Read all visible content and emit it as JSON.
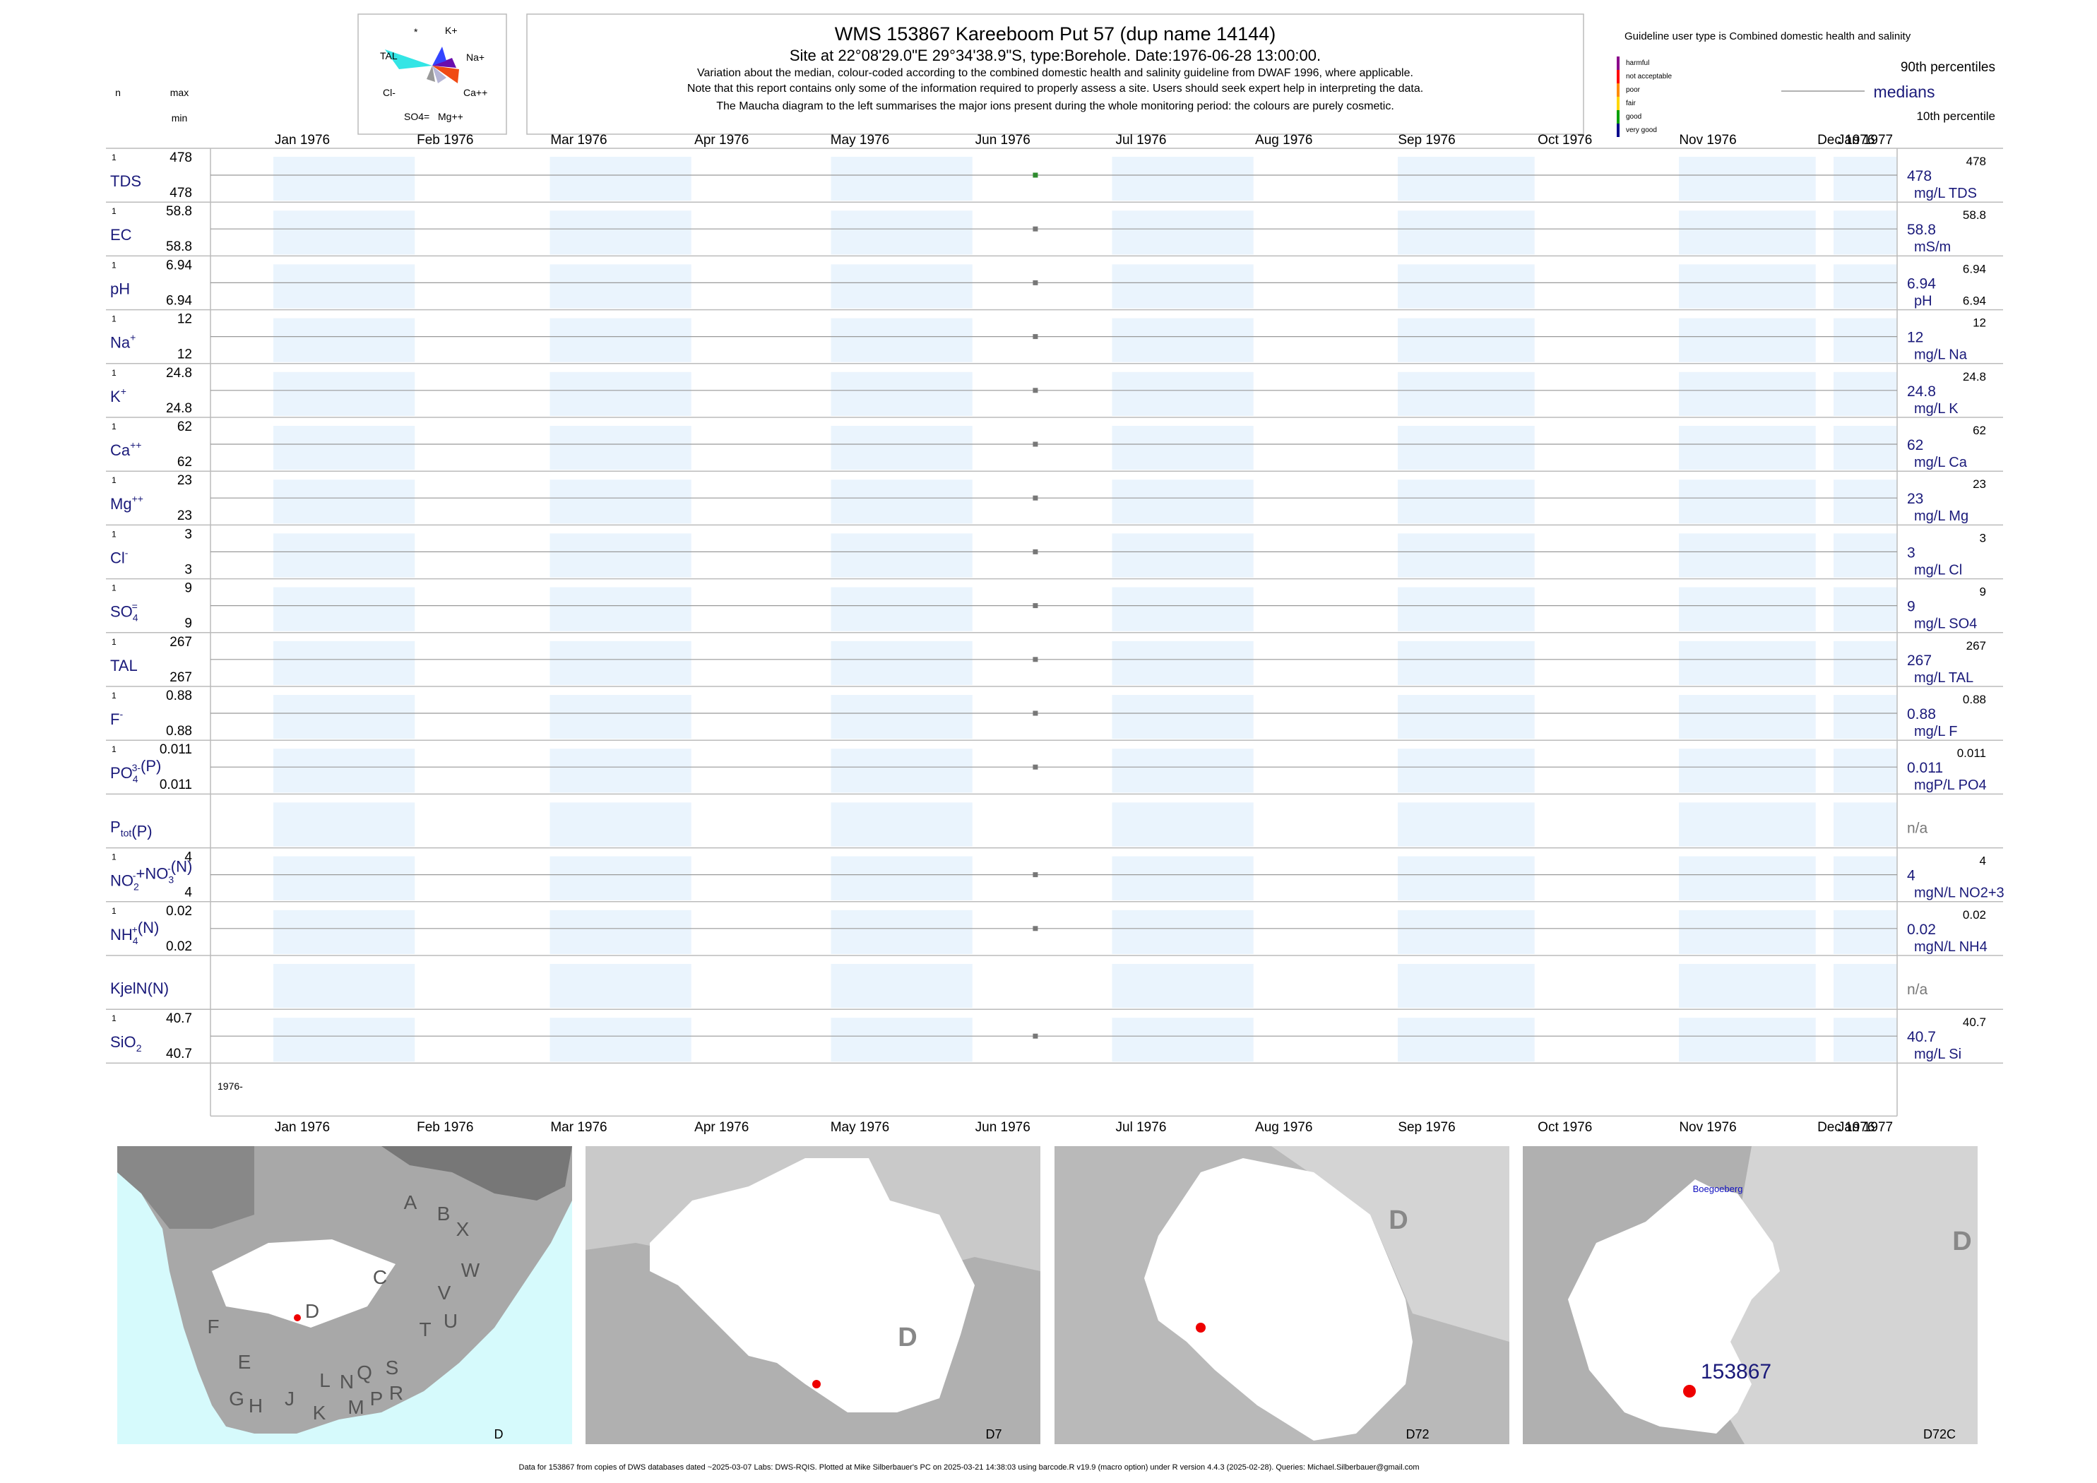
{
  "header": {
    "title": "WMS 153867  Kareeboom Put 57 (dup name 14144)",
    "subtitle": "Site at 22°08'29.0\"E 29°34'38.9\"S, type:Borehole. Date:1976-06-28 13:00:00.",
    "note1": "Variation about the median,  colour-coded according to the combined domestic health and salinity guideline from DWAF 1996, where applicable.",
    "note2": "Note that this report contains only some of the information required to properly assess a site. Users should seek expert help in interpreting the data.",
    "note3": "The Maucha diagram to the left summarises the major ions present during the whole monitoring period: the colours are purely cosmetic."
  },
  "left_header": {
    "n": "n",
    "max": "max",
    "min": "min"
  },
  "maucha": {
    "labels": [
      "*",
      "K+",
      "TAL",
      "Na+",
      "Cl-",
      "Ca++",
      "SO4=",
      "Mg++"
    ]
  },
  "legend": {
    "guideline_text": "Guideline user type is Combined domestic health and salinity",
    "categories": [
      "harmful",
      "not acceptable",
      "poor",
      "fair",
      "good",
      "very good"
    ],
    "category_colors": [
      "#8b008b",
      "#ff0000",
      "#ff8c00",
      "#ffd700",
      "#00a000",
      "#00008b"
    ],
    "p90": "90th percentiles",
    "medians": "medians",
    "p10": "10th percentile"
  },
  "footer": "Data for 153867 from copies of DWS databases dated ~2025-03-07 Labs: DWS-RQIS. Plotted at Mike Silberbauer's PC on 2025-03-21 14:38:03 using barcode.R v19.9 (macro option) under R version 4.4.3 (2025-02-28). Queries: Michael.Silberbauer@gmail.com",
  "maps": [
    {
      "label": "D",
      "letters": [
        "A",
        "B",
        "X",
        "W",
        "C",
        "V",
        "U",
        "T",
        "D",
        "F",
        "E",
        "G",
        "H",
        "J",
        "K",
        "L",
        "M",
        "N",
        "P",
        "Q",
        "R",
        "S"
      ]
    },
    {
      "label": "D7",
      "letters": [
        "D"
      ]
    },
    {
      "label": "D72",
      "letters": [
        "D"
      ]
    },
    {
      "label": "D72C",
      "letters": [
        "D"
      ],
      "place": "Boegoeberg",
      "site_label": "153867"
    }
  ],
  "chart_data": {
    "type": "scatter",
    "x_ticks": [
      "Jan 1976",
      "Feb 1976",
      "Mar 1976",
      "Apr 1976",
      "May 1976",
      "Jun 1976",
      "Jul 1976",
      "Aug 1976",
      "Sep 1976",
      "Oct 1976",
      "Nov 1976",
      "Dec 1976",
      "Jan 1977"
    ],
    "xlim": [
      "1976-01-01",
      "1977-01-01"
    ],
    "x_bottom_label": "1976-",
    "sample_date": "1976-06-28",
    "rows": [
      {
        "label": "TDS",
        "n": "1",
        "max": "478",
        "min": "478",
        "median": "478",
        "unit": "mg/L TDS",
        "p90": "478",
        "p10": "",
        "point_color": "#2e8b2e"
      },
      {
        "label": "EC",
        "n": "1",
        "max": "58.8",
        "min": "58.8",
        "median": "58.8",
        "unit": "mS/m",
        "p90": "58.8",
        "p10": "",
        "point_color": "#777777"
      },
      {
        "label": "pH",
        "n": "1",
        "max": "6.94",
        "min": "6.94",
        "median": "6.94",
        "unit": "pH",
        "p90": "6.94",
        "p10": "6.94",
        "point_color": "#777777"
      },
      {
        "label": "Na",
        "sup": "+",
        "n": "1",
        "max": "12",
        "min": "12",
        "median": "12",
        "unit": "mg/L Na",
        "p90": "12",
        "p10": "",
        "point_color": "#777777"
      },
      {
        "label": "K",
        "sup": "+",
        "n": "1",
        "max": "24.8",
        "min": "24.8",
        "median": "24.8",
        "unit": "mg/L K",
        "p90": "24.8",
        "p10": "",
        "point_color": "#777777"
      },
      {
        "label": "Ca",
        "sup": "++",
        "n": "1",
        "max": "62",
        "min": "62",
        "median": "62",
        "unit": "mg/L Ca",
        "p90": "62",
        "p10": "",
        "point_color": "#777777"
      },
      {
        "label": "Mg",
        "sup": "++",
        "n": "1",
        "max": "23",
        "min": "23",
        "median": "23",
        "unit": "mg/L Mg",
        "p90": "23",
        "p10": "",
        "point_color": "#777777"
      },
      {
        "label": "Cl",
        "sup": "-",
        "n": "1",
        "max": "3",
        "min": "3",
        "median": "3",
        "unit": "mg/L Cl",
        "p90": "3",
        "p10": "",
        "point_color": "#777777"
      },
      {
        "label": "SO",
        "sub": "4",
        "sup": "=",
        "n": "1",
        "max": "9",
        "min": "9",
        "median": "9",
        "unit": "mg/L SO4",
        "p90": "9",
        "p10": "",
        "point_color": "#777777"
      },
      {
        "label": "TAL",
        "n": "1",
        "max": "267",
        "min": "267",
        "median": "267",
        "unit": "mg/L TAL",
        "p90": "267",
        "p10": "",
        "point_color": "#777777"
      },
      {
        "label": "F",
        "sup": "-",
        "n": "1",
        "max": "0.88",
        "min": "0.88",
        "median": "0.88",
        "unit": "mg/L F",
        "p90": "0.88",
        "p10": "",
        "point_color": "#777777"
      },
      {
        "label": "PO",
        "sub": "4",
        "sup": "3-",
        "tail": "(P)",
        "n": "1",
        "max": "0.011",
        "min": "0.011",
        "median": "0.011",
        "unit": "mgP/L PO4",
        "p90": "0.011",
        "p10": "",
        "point_color": "#777777"
      },
      {
        "label": "P",
        "sub": "tot",
        "tail": "(P)",
        "n": "",
        "max": "",
        "min": "",
        "median": "n/a",
        "unit": "",
        "p90": "",
        "p10": "",
        "point_color": ""
      },
      {
        "label": "NO",
        "sub": "2",
        "sup": "-",
        "mid": "+NO",
        "sub2": "3",
        "sup2": "-",
        "tail": "(N)",
        "n": "1",
        "max": "4",
        "min": "4",
        "median": "4",
        "unit": "mgN/L NO2+3",
        "p90": "4",
        "p10": "",
        "point_color": "#777777"
      },
      {
        "label": "NH",
        "sub": "4",
        "sup": "+",
        "tail": "(N)",
        "n": "1",
        "max": "0.02",
        "min": "0.02",
        "median": "0.02",
        "unit": "mgN/L NH4",
        "p90": "0.02",
        "p10": "",
        "point_color": "#777777"
      },
      {
        "label": "KjelN(N)",
        "n": "",
        "max": "",
        "min": "",
        "median": "n/a",
        "unit": "",
        "p90": "",
        "p10": "",
        "point_color": ""
      },
      {
        "label": "SiO",
        "sub": "2",
        "n": "1",
        "max": "40.7",
        "min": "40.7",
        "median": "40.7",
        "unit": "mg/L Si",
        "p90": "40.7",
        "p10": "",
        "point_color": "#777777"
      }
    ]
  }
}
